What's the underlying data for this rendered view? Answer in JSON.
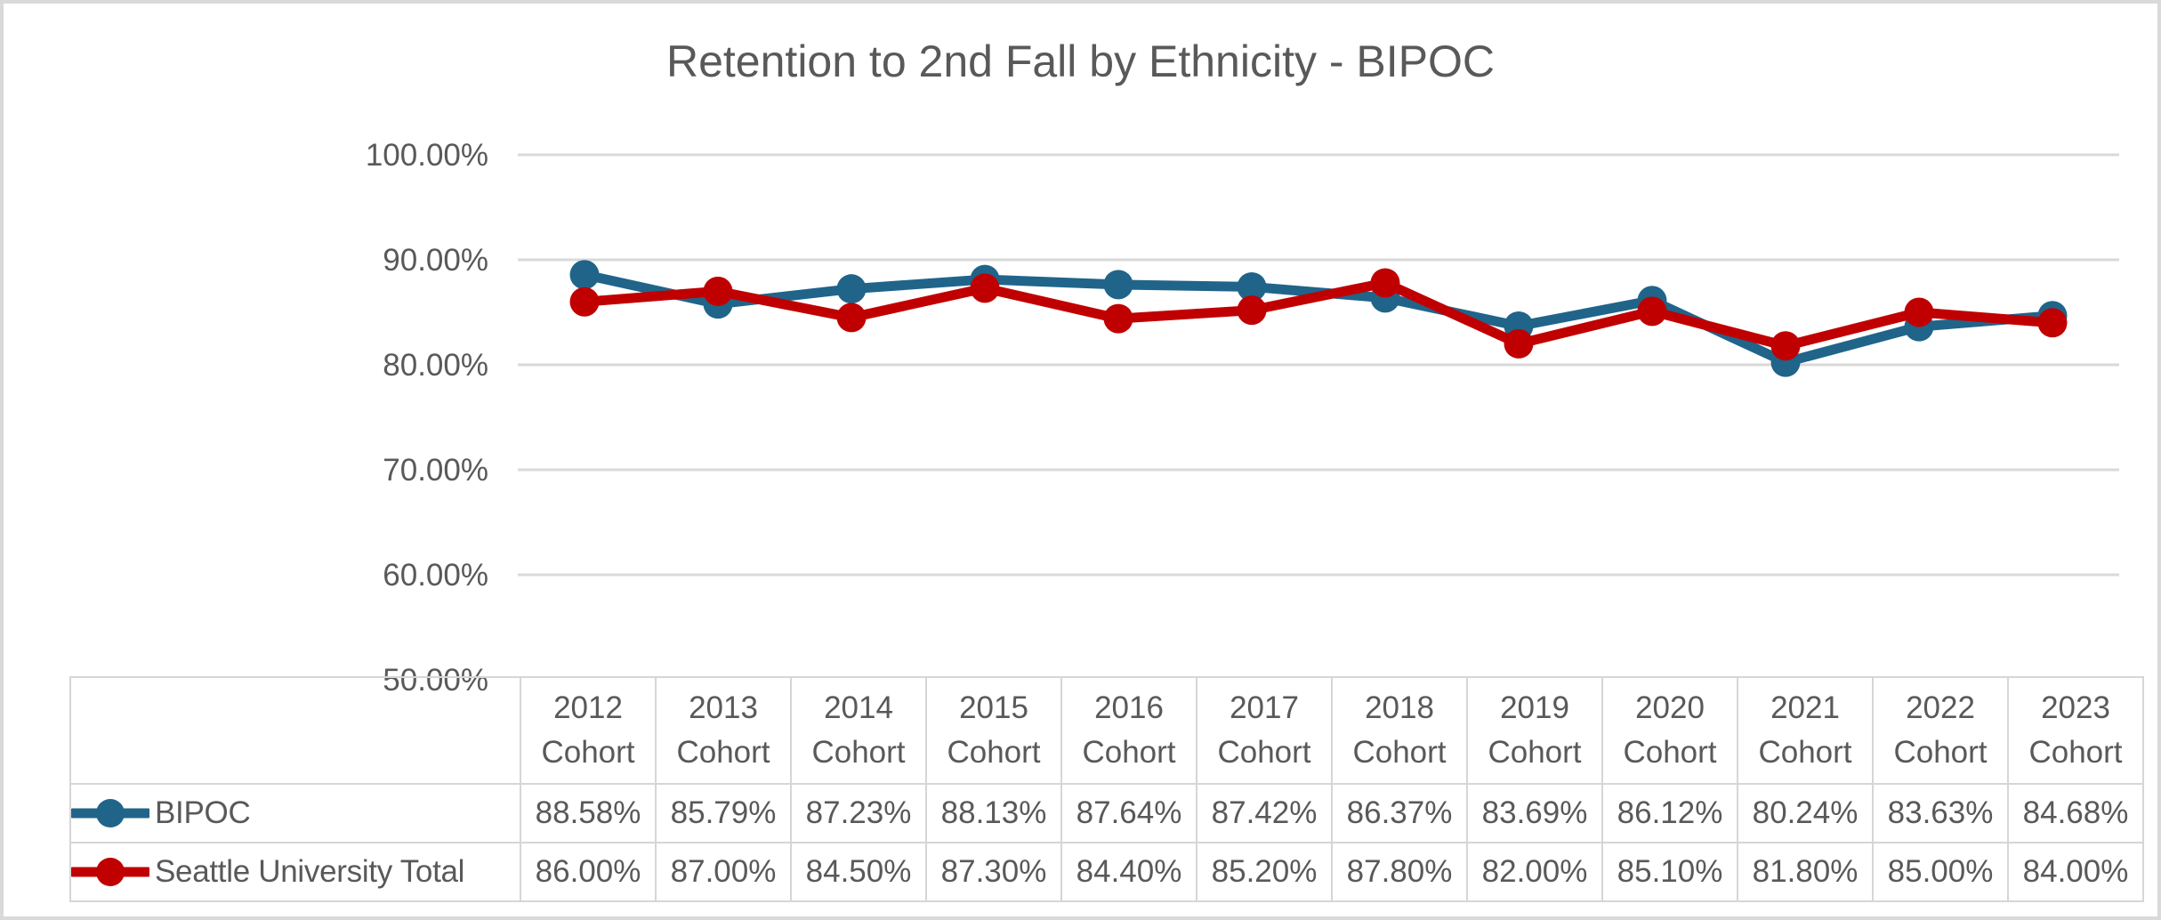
{
  "title": "Retention to 2nd Fall by Ethnicity - BIPOC",
  "colors": {
    "series_bipoc": "#20648A",
    "series_seattle_total": "#C00000",
    "gridline": "#d9d9d9",
    "text": "#595959",
    "table_border": "#d6d6d6"
  },
  "chart_data": {
    "type": "line",
    "title": "Retention to 2nd Fall by Ethnicity - BIPOC",
    "categories": [
      "2012",
      "2013",
      "2014",
      "2015",
      "2016",
      "2017",
      "2018",
      "2019",
      "2020",
      "2021",
      "2022",
      "2023"
    ],
    "category_suffix": "Cohort",
    "series": [
      {
        "name": "BIPOC",
        "color": "#20648A",
        "values": [
          88.58,
          85.79,
          87.23,
          88.13,
          87.64,
          87.42,
          86.37,
          83.69,
          86.12,
          80.24,
          83.63,
          84.68
        ]
      },
      {
        "name": "Seattle University Total",
        "color": "#C00000",
        "values": [
          86.0,
          87.0,
          84.5,
          87.3,
          84.4,
          85.2,
          87.8,
          82.0,
          85.1,
          81.8,
          85.0,
          84.0
        ]
      }
    ],
    "ylim": [
      50,
      100
    ],
    "ytick_step": 10,
    "ytick_labels": [
      "50.00%",
      "60.00%",
      "70.00%",
      "80.00%",
      "90.00%",
      "100.00%"
    ],
    "grid": true,
    "legend_position": "table-left",
    "value_format": "0.00%"
  }
}
